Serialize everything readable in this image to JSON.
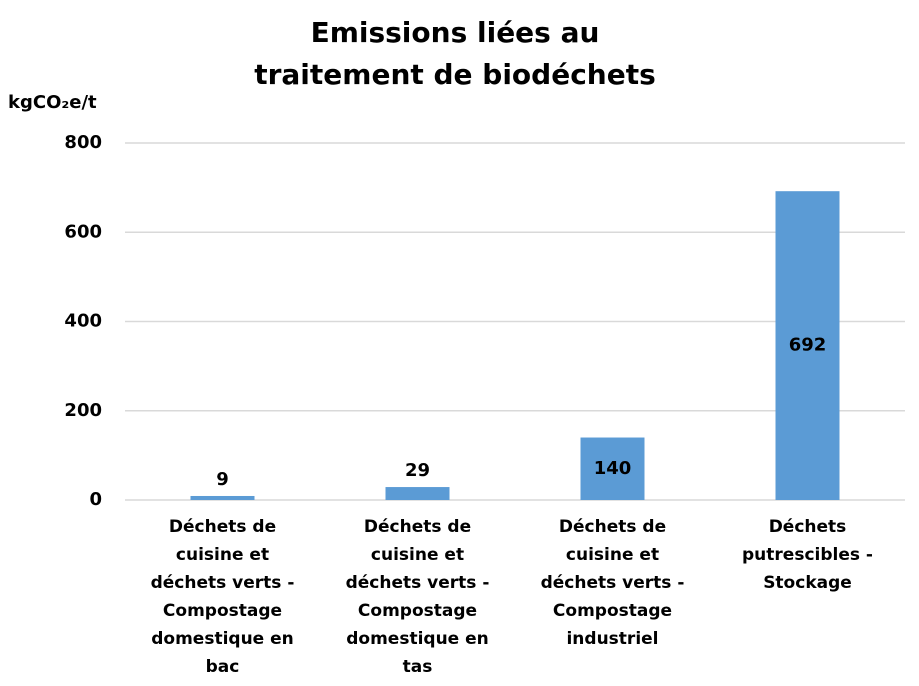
{
  "chart_data": {
    "type": "bar",
    "title": "Emissions liées au\ntraitement de biodéchets",
    "y_label": "kgCO₂e/t",
    "categories": [
      "Déchets de\ncuisine et\ndéchets verts -\nCompostage\ndomestique en\nbac",
      "Déchets de\ncuisine et\ndéchets verts -\nCompostage\ndomestique en\ntas",
      "Déchets de\ncuisine et\ndéchets verts -\nCompostage\nindustriel",
      "Déchets\nputrescibles -\nStockage"
    ],
    "values": [
      9,
      29,
      140,
      692
    ],
    "color": "#5b9bd5",
    "ylim": [
      0,
      800
    ],
    "yticks": [
      0,
      200,
      400,
      600,
      800
    ],
    "grid": true
  }
}
